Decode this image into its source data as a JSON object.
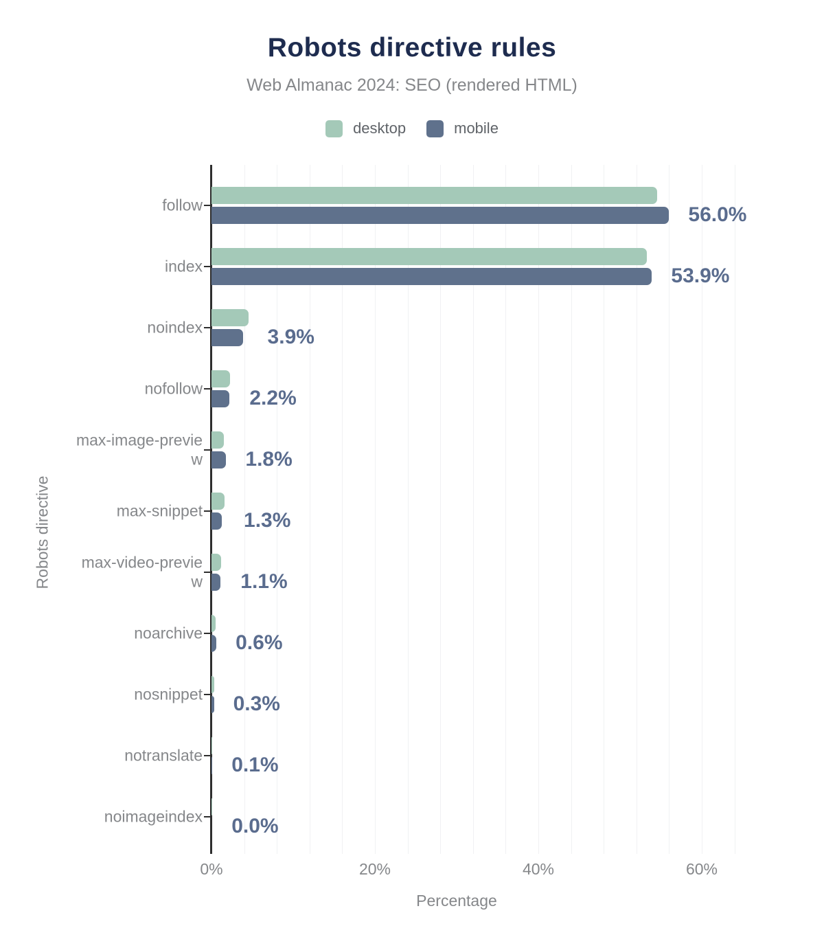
{
  "title": "Robots directive rules",
  "subtitle": "Web Almanac 2024: SEO (rendered HTML)",
  "legend": [
    {
      "label": "desktop",
      "color": "#a4c9b8"
    },
    {
      "label": "mobile",
      "color": "#5f718c"
    }
  ],
  "chart_data": {
    "type": "bar",
    "orientation": "horizontal",
    "title": "Robots directive rules",
    "subtitle": "Web Almanac 2024: SEO (rendered HTML)",
    "xlabel": "Percentage",
    "ylabel": "Robots directive",
    "categories": [
      "follow",
      "index",
      "noindex",
      "nofollow",
      "max-image-preview",
      "max-snippet",
      "max-video-preview",
      "noarchive",
      "nosnippet",
      "notranslate",
      "noimageindex"
    ],
    "category_display_lines": [
      [
        "follow"
      ],
      [
        "index"
      ],
      [
        "noindex"
      ],
      [
        "nofollow"
      ],
      [
        "max-image-previe",
        "w"
      ],
      [
        "max-snippet"
      ],
      [
        "max-video-previe",
        "w"
      ],
      [
        "noarchive"
      ],
      [
        "nosnippet"
      ],
      [
        "notranslate"
      ],
      [
        "noimageindex"
      ]
    ],
    "series": [
      {
        "name": "desktop",
        "color": "#a4c9b8",
        "values": [
          54.5,
          53.3,
          4.5,
          2.3,
          1.5,
          1.6,
          1.2,
          0.5,
          0.3,
          0.1,
          0.1
        ]
      },
      {
        "name": "mobile",
        "color": "#5f718c",
        "values": [
          56.0,
          53.9,
          3.9,
          2.2,
          1.8,
          1.3,
          1.1,
          0.6,
          0.3,
          0.1,
          0.0
        ]
      }
    ],
    "value_labels": [
      "56.0%",
      "53.9%",
      "3.9%",
      "2.2%",
      "1.8%",
      "1.3%",
      "1.1%",
      "0.6%",
      "0.3%",
      "0.1%",
      "0.0%"
    ],
    "value_labels_series": "mobile",
    "x_ticks": [
      "0%",
      "20%",
      "40%",
      "60%"
    ],
    "x_tick_values": [
      0,
      20,
      40,
      60
    ],
    "xlim": [
      0,
      72
    ],
    "grid": {
      "on": true,
      "minor_step_pct": 4,
      "last_gridline_pct": 64,
      "legend_position": "top"
    }
  },
  "colors": {
    "title": "#1e2c4f",
    "subtitle": "#85878a",
    "category_label": "#85878a",
    "value_label": "#5a6c8e",
    "axis_line": "#2e2e2e",
    "gridline": "#f0f1f3",
    "desktop": "#a4c9b8",
    "mobile": "#5f718c"
  }
}
